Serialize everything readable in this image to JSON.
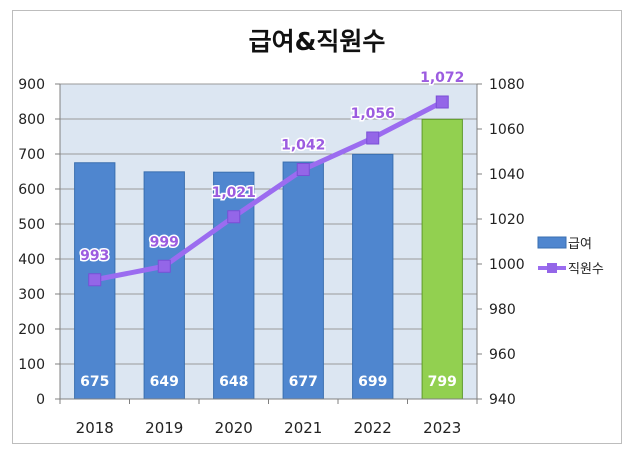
{
  "chart_data": {
    "type": "bar",
    "title": "급여&직원수",
    "categories": [
      "2018",
      "2019",
      "2020",
      "2021",
      "2022",
      "2023"
    ],
    "series": [
      {
        "name": "급여",
        "type": "bar",
        "axis": "left",
        "values": [
          675,
          649,
          648,
          677,
          699,
          799
        ],
        "data_labels": [
          "675",
          "649",
          "648",
          "677",
          "699",
          "799"
        ],
        "color": "#4f86cf",
        "highlight_color": "#92d050",
        "highlight_index": 5
      },
      {
        "name": "직원수",
        "type": "line",
        "axis": "right",
        "values": [
          993,
          999,
          1021,
          1042,
          1056,
          1072
        ],
        "data_labels": [
          "993",
          "999",
          "1,021",
          "1,042",
          "1,056",
          "1,072"
        ],
        "color": "#9b6cf0"
      }
    ],
    "y_left": {
      "min": 0,
      "max": 900,
      "step": 100,
      "ticks": [
        "0",
        "100",
        "200",
        "300",
        "400",
        "500",
        "600",
        "700",
        "800",
        "900"
      ]
    },
    "y_right": {
      "min": 940,
      "max": 1080,
      "step": 20,
      "ticks": [
        "940",
        "960",
        "980",
        "1000",
        "1020",
        "1040",
        "1060",
        "1080"
      ]
    },
    "grid": true,
    "plot_background": "#dce6f2",
    "legend_position": "right"
  }
}
